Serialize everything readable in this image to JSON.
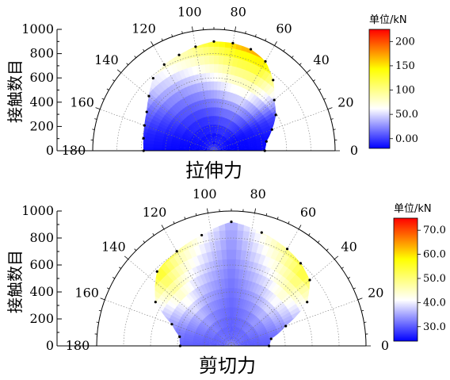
{
  "chart_data": [
    {
      "type": "heatmap",
      "subtype": "polar-contour",
      "caption": "拉伸力",
      "ylabel": "接触数目",
      "radial_ticks": [
        "0",
        "200",
        "400",
        "600",
        "800",
        "1000"
      ],
      "angle_ticks": [
        "0",
        "20",
        "40",
        "60",
        "80",
        "100",
        "120",
        "140",
        "160",
        "180"
      ],
      "rlim": [
        0,
        1000
      ],
      "theta_range_deg": [
        0,
        180
      ],
      "colorbar": {
        "title": "单位/kN",
        "ticks": [
          "0.00",
          "50.0",
          "100",
          "150",
          "200"
        ],
        "range": [
          -20,
          225
        ],
        "colors": [
          "#0000ff",
          "#ffffff",
          "#ffff00",
          "#ff0000"
        ]
      },
      "envelope": [
        {
          "angle": 0,
          "r": 420
        },
        {
          "angle": 10,
          "r": 440
        },
        {
          "angle": 20,
          "r": 510
        },
        {
          "angle": 30,
          "r": 590
        },
        {
          "angle": 40,
          "r": 650
        },
        {
          "angle": 50,
          "r": 760
        },
        {
          "angle": 60,
          "r": 850
        },
        {
          "angle": 70,
          "r": 890
        },
        {
          "angle": 80,
          "r": 900
        },
        {
          "angle": 90,
          "r": 900
        },
        {
          "angle": 100,
          "r": 870
        },
        {
          "angle": 110,
          "r": 840
        },
        {
          "angle": 120,
          "r": 820
        },
        {
          "angle": 130,
          "r": 780
        },
        {
          "angle": 140,
          "r": 700
        },
        {
          "angle": 150,
          "r": 640
        },
        {
          "angle": 160,
          "r": 610
        },
        {
          "angle": 170,
          "r": 590
        },
        {
          "angle": 180,
          "r": 580
        }
      ],
      "force_field": [
        {
          "angle": 0,
          "value": -10
        },
        {
          "angle": 15,
          "value": 0
        },
        {
          "angle": 30,
          "value": 40
        },
        {
          "angle": 45,
          "value": 150
        },
        {
          "angle": 60,
          "value": 210
        },
        {
          "angle": 75,
          "value": 200
        },
        {
          "angle": 90,
          "value": 160
        },
        {
          "angle": 105,
          "value": 130
        },
        {
          "angle": 120,
          "value": 110
        },
        {
          "angle": 135,
          "value": 95
        },
        {
          "angle": 150,
          "value": 50
        },
        {
          "angle": 165,
          "value": 10
        },
        {
          "angle": 180,
          "value": -10
        }
      ],
      "field_radial_floor": -20
    },
    {
      "type": "heatmap",
      "subtype": "polar-contour",
      "caption": "剪切力",
      "ylabel": "接触数目",
      "radial_ticks": [
        "0",
        "200",
        "400",
        "600",
        "800",
        "1000"
      ],
      "angle_ticks": [
        "0",
        "20",
        "40",
        "60",
        "80",
        "100",
        "120",
        "140",
        "160",
        "180"
      ],
      "rlim": [
        0,
        1000
      ],
      "theta_range_deg": [
        0,
        180
      ],
      "colorbar": {
        "title": "单位/kN",
        "ticks": [
          "30.0",
          "40.0",
          "50.0",
          "60.0",
          "70.0"
        ],
        "range": [
          24,
          75
        ],
        "colors": [
          "#0000ff",
          "#ffffff",
          "#ffff00",
          "#ff0000"
        ]
      },
      "envelope": [
        {
          "angle": 0,
          "r": 280
        },
        {
          "angle": 10,
          "r": 300
        },
        {
          "angle": 20,
          "r": 430
        },
        {
          "angle": 30,
          "r": 650
        },
        {
          "angle": 40,
          "r": 760
        },
        {
          "angle": 50,
          "r": 800
        },
        {
          "angle": 60,
          "r": 830
        },
        {
          "angle": 75,
          "r": 870
        },
        {
          "angle": 90,
          "r": 920
        },
        {
          "angle": 105,
          "r": 850
        },
        {
          "angle": 120,
          "r": 810
        },
        {
          "angle": 135,
          "r": 780
        },
        {
          "angle": 150,
          "r": 650
        },
        {
          "angle": 160,
          "r": 470
        },
        {
          "angle": 170,
          "r": 390
        },
        {
          "angle": 180,
          "r": 380
        }
      ],
      "force_field": [
        {
          "angle": 0,
          "value": 32
        },
        {
          "angle": 15,
          "value": 40
        },
        {
          "angle": 30,
          "value": 55
        },
        {
          "angle": 45,
          "value": 68
        },
        {
          "angle": 60,
          "value": 55
        },
        {
          "angle": 75,
          "value": 45
        },
        {
          "angle": 90,
          "value": 36
        },
        {
          "angle": 105,
          "value": 45
        },
        {
          "angle": 120,
          "value": 55
        },
        {
          "angle": 135,
          "value": 70
        },
        {
          "angle": 150,
          "value": 55
        },
        {
          "angle": 165,
          "value": 40
        },
        {
          "angle": 180,
          "value": 32
        }
      ],
      "field_radial_floor": 30
    }
  ]
}
